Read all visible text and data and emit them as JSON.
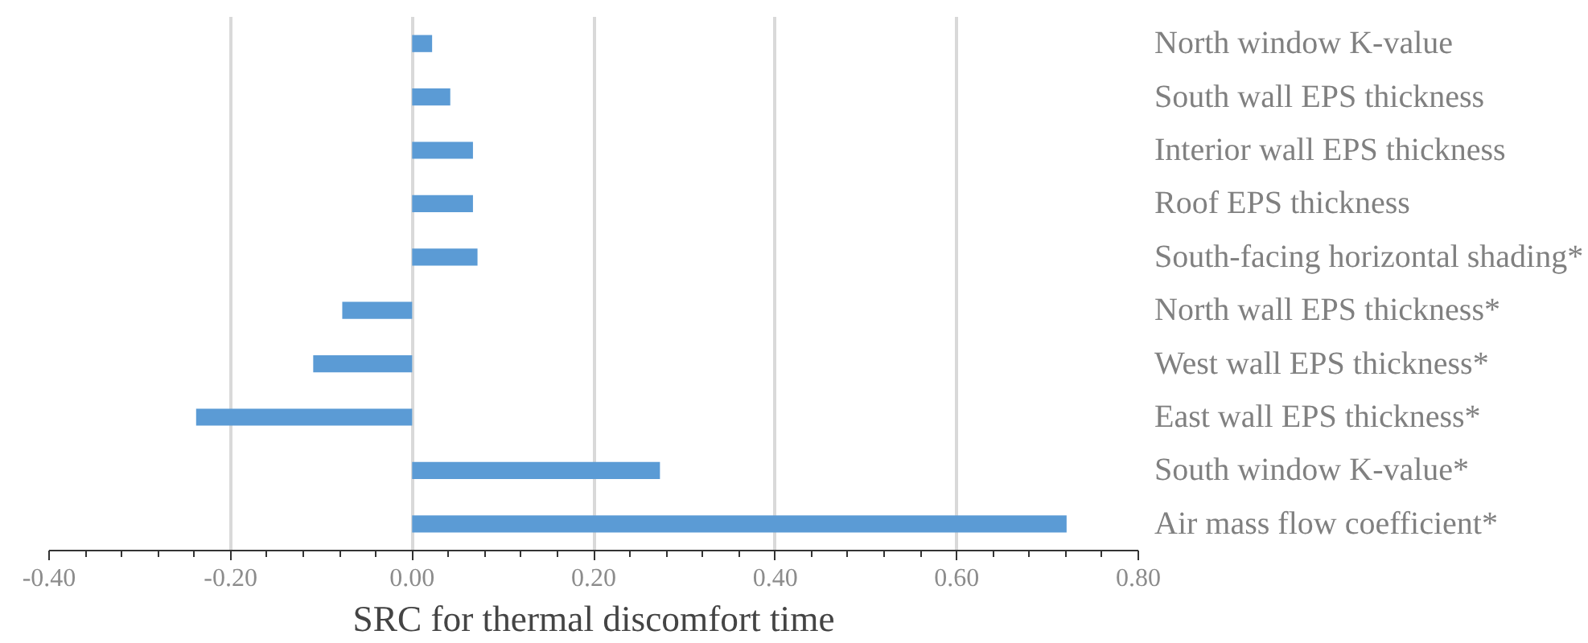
{
  "chart_data": {
    "type": "bar",
    "orientation": "horizontal",
    "xlabel": "SRC for thermal discomfort time",
    "categories": [
      "North window K-value",
      "South wall EPS thickness",
      "Interior wall EPS thickness",
      "Roof EPS thickness",
      "South-facing horizontal shading*",
      "North wall EPS thickness*",
      "West wall EPS thickness*",
      "East wall EPS thickness*",
      "South window K-value*",
      "Air mass flow coefficient*"
    ],
    "values": [
      0.022,
      0.042,
      0.067,
      0.067,
      0.072,
      -0.077,
      -0.109,
      -0.238,
      0.273,
      0.721
    ],
    "color": "#5b9bd5",
    "xlim": [
      -0.4,
      0.8
    ],
    "xticks": [
      {
        "value": -0.4,
        "label": "-0.40"
      },
      {
        "value": -0.2,
        "label": "-0.20"
      },
      {
        "value": 0,
        "label": "0.00"
      },
      {
        "value": 0.2,
        "label": "0.20"
      },
      {
        "value": 0.4,
        "label": "0.40"
      },
      {
        "value": 0.6,
        "label": "0.60"
      },
      {
        "value": 0.8,
        "label": "0.80"
      }
    ],
    "grid": "x"
  }
}
